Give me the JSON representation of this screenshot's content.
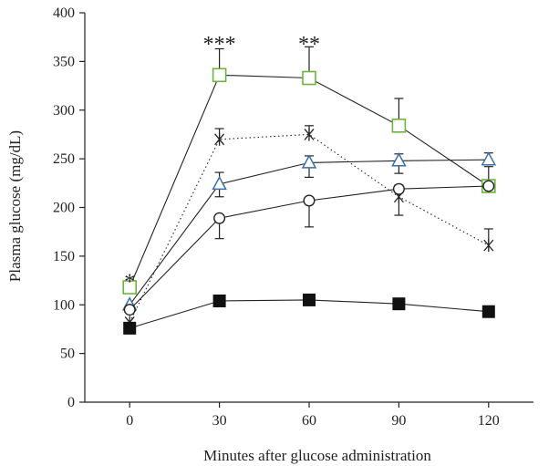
{
  "chart_data": {
    "type": "line",
    "xlabel": "Minutes after glucose administration",
    "ylabel": "Plasma glucose (mg/dL)",
    "x": [
      0,
      30,
      60,
      90,
      120
    ],
    "xlim": [
      -15,
      135
    ],
    "ylim": [
      0,
      400
    ],
    "x_ticks": [
      "0",
      "30",
      "60",
      "90",
      "120"
    ],
    "y_ticks": [
      "0",
      "50",
      "100",
      "150",
      "200",
      "250",
      "300",
      "350",
      "400"
    ],
    "grid": false,
    "legend": "none",
    "series": [
      {
        "marker": "open-square",
        "color": "#6db33f",
        "line_style": "solid",
        "values": [
          118,
          336,
          333,
          284,
          222
        ],
        "error_upper": [
          null,
          363,
          365,
          312,
          242
        ]
      },
      {
        "marker": "asterisk",
        "color": "#222222",
        "line_style": "dotted",
        "values": [
          82,
          270,
          275,
          211,
          161
        ],
        "error_upper": [
          null,
          281,
          284,
          223,
          178
        ],
        "error_lower": [
          null,
          null,
          null,
          192,
          null
        ]
      },
      {
        "marker": "open-triangle",
        "color": "#3a6fa8",
        "line_style": "solid",
        "values": [
          100,
          224,
          246,
          248,
          249
        ],
        "error_upper": [
          null,
          236,
          253,
          255,
          256
        ],
        "error_lower": [
          null,
          211,
          231,
          235,
          null
        ]
      },
      {
        "marker": "open-circle",
        "color": "#222222",
        "line_style": "solid",
        "values": [
          95,
          189,
          207,
          219,
          222
        ],
        "error_lower": [
          null,
          168,
          180,
          null,
          null
        ]
      },
      {
        "marker": "filled-square",
        "color": "#111111",
        "line_style": "solid",
        "values": [
          76,
          104,
          105,
          101,
          93
        ]
      }
    ],
    "annotations": [
      {
        "text": "*",
        "x": 0,
        "y": 128
      },
      {
        "text": "***",
        "x": 30,
        "y": 372
      },
      {
        "text": "**",
        "x": 60,
        "y": 372
      }
    ]
  }
}
